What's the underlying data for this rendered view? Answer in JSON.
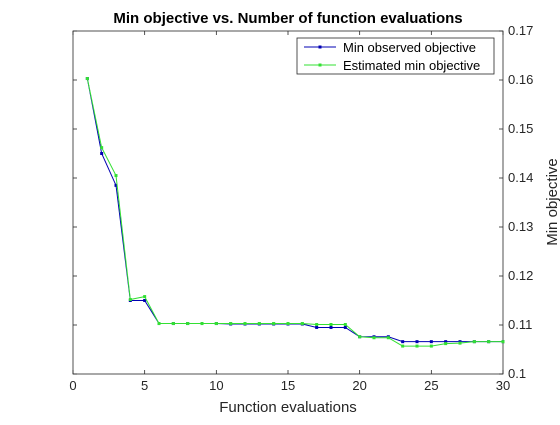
{
  "chart_data": {
    "type": "line",
    "title": "Min objective vs. Number of function evaluations",
    "xlabel": "Function evaluations",
    "ylabel": "Min objective",
    "xlim": [
      0,
      30
    ],
    "ylim": [
      0.1,
      0.17
    ],
    "xticks": [
      "0",
      "5",
      "10",
      "15",
      "20",
      "25",
      "30"
    ],
    "yticks": [
      "0.1",
      "0.11",
      "0.12",
      "0.13",
      "0.14",
      "0.15",
      "0.16",
      "0.17"
    ],
    "y_axis_side": "right",
    "legend_position": "top-right",
    "grid": false,
    "x": [
      1,
      2,
      3,
      4,
      5,
      6,
      7,
      8,
      9,
      10,
      11,
      12,
      13,
      14,
      15,
      16,
      17,
      18,
      19,
      20,
      21,
      22,
      23,
      24,
      25,
      26,
      27,
      28,
      29,
      30
    ],
    "series": [
      {
        "name": "Min observed objective",
        "color": "#0000b3",
        "values": [
          0.1603,
          0.145,
          0.1385,
          0.115,
          0.115,
          0.1103,
          0.1103,
          0.1103,
          0.1103,
          0.1103,
          0.1102,
          0.1102,
          0.1102,
          0.1102,
          0.1102,
          0.1102,
          0.1095,
          0.1095,
          0.1095,
          0.1076,
          0.1076,
          0.1076,
          0.1066,
          0.1066,
          0.1066,
          0.1066,
          0.1066,
          0.1066,
          0.1066,
          0.1066
        ]
      },
      {
        "name": "Estimated min objective",
        "color": "#33e033",
        "values": [
          0.1603,
          0.1462,
          0.1405,
          0.1152,
          0.1158,
          0.1103,
          0.1103,
          0.1103,
          0.1103,
          0.1103,
          0.1103,
          0.1103,
          0.1103,
          0.1103,
          0.1103,
          0.1103,
          0.1101,
          0.1101,
          0.1101,
          0.1076,
          0.1074,
          0.1074,
          0.1057,
          0.1057,
          0.1057,
          0.1062,
          0.1063,
          0.1066,
          0.1066,
          0.1066
        ]
      }
    ]
  }
}
